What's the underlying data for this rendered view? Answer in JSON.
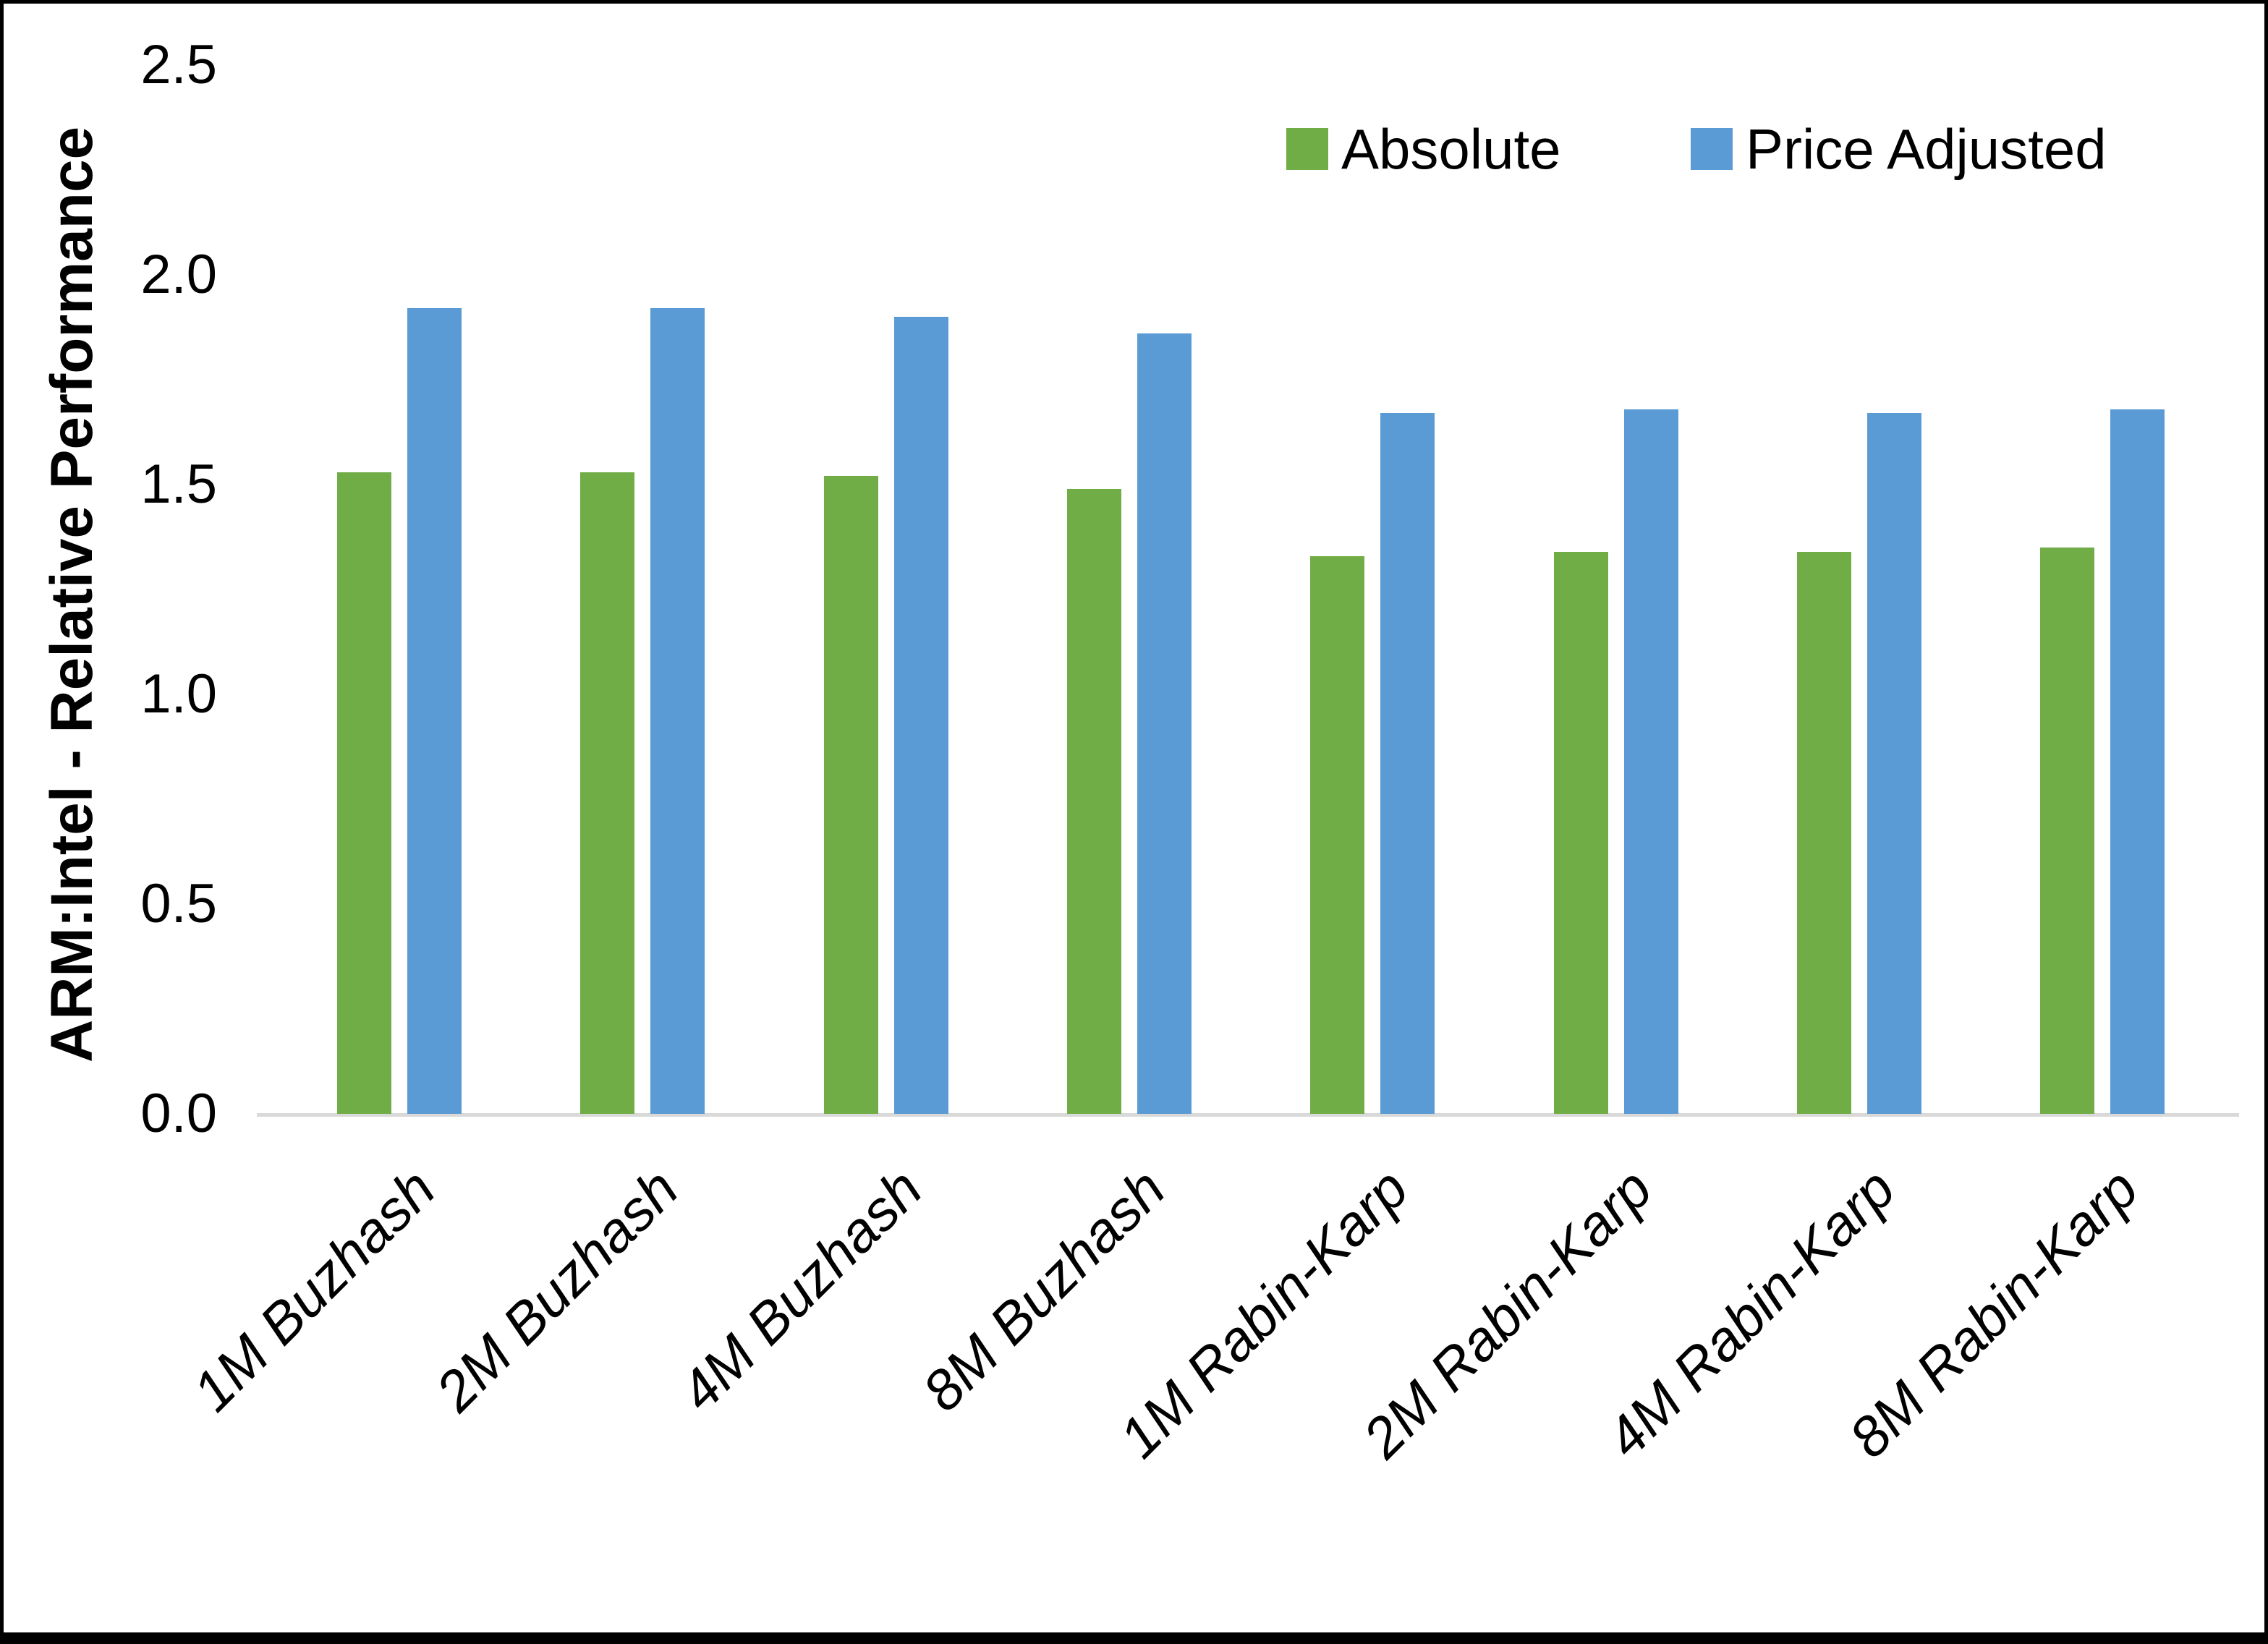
{
  "chart_data": {
    "type": "bar",
    "title": "",
    "categories": [
      "1M Buzhash",
      "2M Buzhash",
      "4M Buzhash",
      "8M Buzhash",
      "1M Rabin-Karp",
      "2M Rabin-Karp",
      "4M Rabin-Karp",
      "8M Rabin-Karp"
    ],
    "series": [
      {
        "name": "Absolute",
        "color": "#70AD47",
        "values": [
          1.53,
          1.53,
          1.52,
          1.49,
          1.33,
          1.34,
          1.34,
          1.35
        ]
      },
      {
        "name": "Price Adjusted",
        "color": "#5B9BD5",
        "values": [
          1.92,
          1.92,
          1.9,
          1.86,
          1.67,
          1.68,
          1.67,
          1.68
        ]
      }
    ],
    "xlabel": "",
    "ylabel": "ARM:Intel - Relative Performance",
    "ylim": [
      0,
      2.5
    ],
    "yticks": [
      "0.0",
      "0.5",
      "1.0",
      "1.5",
      "2.0",
      "2.5"
    ],
    "grid": false,
    "legend_position": "top-right",
    "axis_line_color": "#D9D9D9",
    "frame_color": "#000000"
  }
}
